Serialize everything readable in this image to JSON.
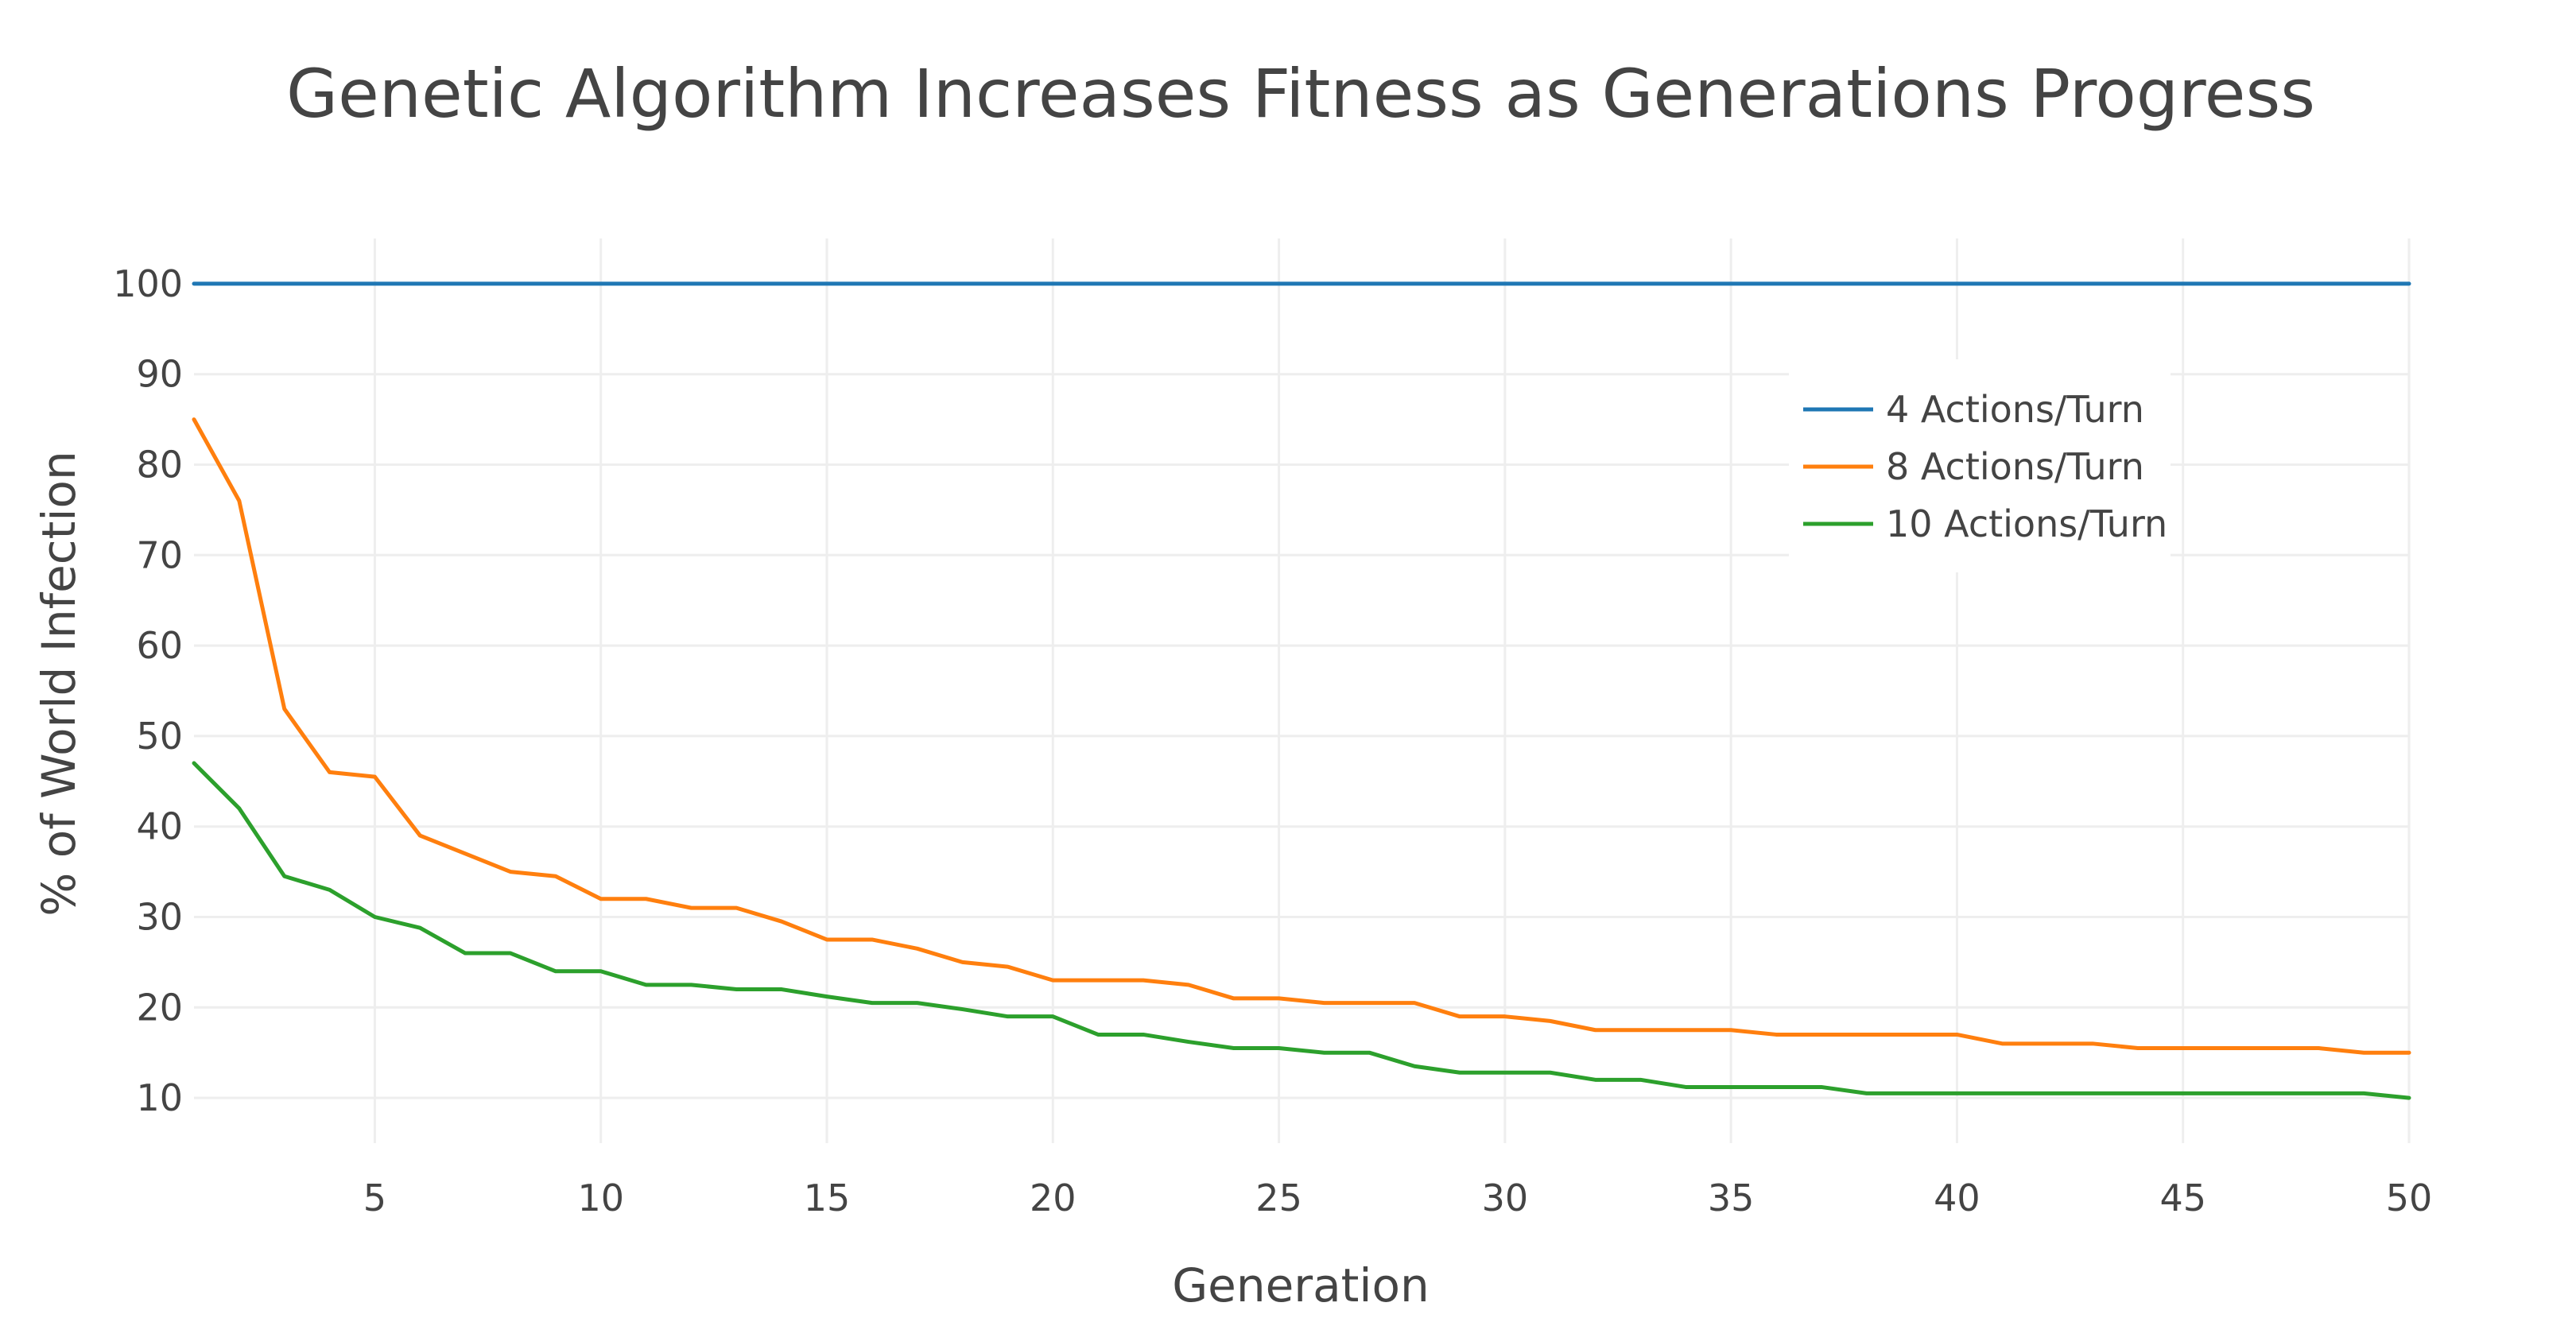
{
  "chart_data": {
    "type": "line",
    "title": "Genetic Algorithm Increases Fitness as Generations Progress",
    "xlabel": "Generation",
    "ylabel": "% of World Infection",
    "xlim": [
      1,
      50
    ],
    "ylim": [
      5,
      105
    ],
    "xticks": [
      5,
      10,
      15,
      20,
      25,
      30,
      35,
      40,
      45,
      50
    ],
    "yticks": [
      10,
      20,
      30,
      40,
      50,
      60,
      70,
      80,
      90,
      100
    ],
    "grid": true,
    "legend_position": "top-right",
    "x": [
      1,
      2,
      3,
      4,
      5,
      6,
      7,
      8,
      9,
      10,
      11,
      12,
      13,
      14,
      15,
      16,
      17,
      18,
      19,
      20,
      21,
      22,
      23,
      24,
      25,
      26,
      27,
      28,
      29,
      30,
      31,
      32,
      33,
      34,
      35,
      36,
      37,
      38,
      39,
      40,
      41,
      42,
      43,
      44,
      45,
      46,
      47,
      48,
      49,
      50
    ],
    "series": [
      {
        "name": "4 Actions/Turn",
        "color": "#1f77b4",
        "values": [
          100,
          100,
          100,
          100,
          100,
          100,
          100,
          100,
          100,
          100,
          100,
          100,
          100,
          100,
          100,
          100,
          100,
          100,
          100,
          100,
          100,
          100,
          100,
          100,
          100,
          100,
          100,
          100,
          100,
          100,
          100,
          100,
          100,
          100,
          100,
          100,
          100,
          100,
          100,
          100,
          100,
          100,
          100,
          100,
          100,
          100,
          100,
          100,
          100,
          100
        ]
      },
      {
        "name": "8 Actions/Turn",
        "color": "#ff7f0e",
        "values": [
          85,
          76,
          53,
          46,
          45.5,
          39,
          37,
          35,
          34.5,
          32,
          32,
          31,
          31,
          29.5,
          27.5,
          27.5,
          26.5,
          25,
          24.5,
          23,
          23,
          23,
          22.5,
          21,
          21,
          20.5,
          20.5,
          20.5,
          19,
          19,
          18.5,
          17.5,
          17.5,
          17.5,
          17.5,
          17,
          17,
          17,
          17,
          17,
          16,
          16,
          16,
          15.5,
          15.5,
          15.5,
          15.5,
          15.5,
          15,
          15
        ]
      },
      {
        "name": "10 Actions/Turn",
        "color": "#2ca02c",
        "values": [
          47,
          42,
          34.5,
          33,
          30,
          28.8,
          26,
          26,
          24,
          24,
          22.5,
          22.5,
          22,
          22,
          21.2,
          20.5,
          20.5,
          19.8,
          19,
          19,
          17,
          17,
          16.2,
          15.5,
          15.5,
          15,
          15,
          13.5,
          12.8,
          12.8,
          12.8,
          12,
          12,
          11.2,
          11.2,
          11.2,
          11.2,
          10.5,
          10.5,
          10.5,
          10.5,
          10.5,
          10.5,
          10.5,
          10.5,
          10.5,
          10.5,
          10.5,
          10.5,
          10
        ]
      }
    ]
  }
}
